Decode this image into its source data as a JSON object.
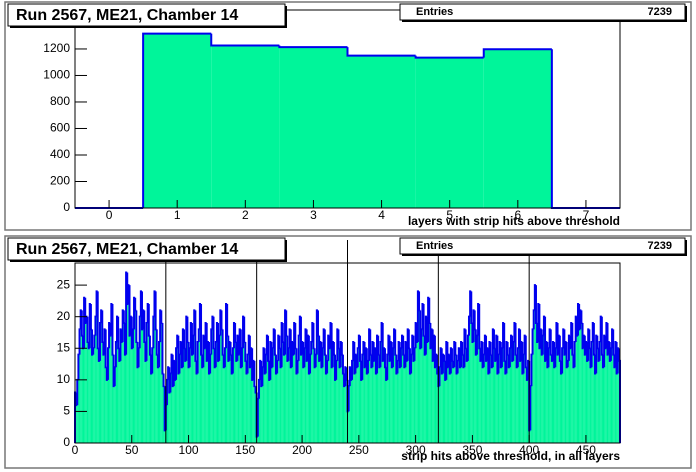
{
  "chart_data": [
    {
      "type": "histogram",
      "title": "Run 2567, ME21, Chamber 14",
      "stats": {
        "label": "Entries",
        "value": 7239
      },
      "xlabel": "layers with strip hits above threshold",
      "bins": [
        -0.5,
        0.5,
        1.5,
        2.5,
        3.5,
        4.5,
        5.5,
        6.5,
        7.5
      ],
      "values": [
        0,
        1316,
        1226,
        1214,
        1150,
        1135,
        1198,
        0
      ],
      "color": "#00f59a",
      "edgecolor": "#0000ee",
      "xlim": [
        -0.5,
        7.5
      ],
      "ylim": [
        0,
        1494
      ],
      "xticks": [
        0,
        1,
        2,
        3,
        4,
        5,
        6,
        7
      ],
      "yticks": [
        0,
        200,
        400,
        600,
        800,
        1000,
        1200
      ]
    },
    {
      "type": "histogram",
      "title": "Run 2567, ME21, Chamber 14",
      "stats": {
        "label": "Entries",
        "value": 7239
      },
      "xlabel": "strip hits above threshold, in all layers",
      "bins": [
        0,
        1,
        2,
        3,
        4,
        5,
        6,
        7,
        8,
        9,
        10,
        11,
        12,
        13,
        14,
        15,
        16,
        17,
        18,
        19,
        20,
        21,
        22,
        23,
        24,
        25,
        26,
        27,
        28,
        29,
        30,
        31,
        32,
        33,
        34,
        35,
        36,
        37,
        38,
        39,
        40,
        41,
        42,
        43,
        44,
        45,
        46,
        47,
        48,
        49,
        50,
        51,
        52,
        53,
        54,
        55,
        56,
        57,
        58,
        59,
        60,
        61,
        62,
        63,
        64,
        65,
        66,
        67,
        68,
        69,
        70,
        71,
        72,
        73,
        74,
        75,
        76,
        77,
        78,
        79,
        80,
        81,
        82,
        83,
        84,
        85,
        86,
        87,
        88,
        89,
        90,
        91,
        92,
        93,
        94,
        95,
        96,
        97,
        98,
        99,
        100,
        101,
        102,
        103,
        104,
        105,
        106,
        107,
        108,
        109,
        110,
        111,
        112,
        113,
        114,
        115,
        116,
        117,
        118,
        119,
        120,
        121,
        122,
        123,
        124,
        125,
        126,
        127,
        128,
        129,
        130,
        131,
        132,
        133,
        134,
        135,
        136,
        137,
        138,
        139,
        140,
        141,
        142,
        143,
        144,
        145,
        146,
        147,
        148,
        149,
        150,
        151,
        152,
        153,
        154,
        155,
        156,
        157,
        158,
        159,
        160,
        161,
        162,
        163,
        164,
        165,
        166,
        167,
        168,
        169,
        170,
        171,
        172,
        173,
        174,
        175,
        176,
        177,
        178,
        179,
        180,
        181,
        182,
        183,
        184,
        185,
        186,
        187,
        188,
        189,
        190,
        191,
        192,
        193,
        194,
        195,
        196,
        197,
        198,
        199,
        200,
        201,
        202,
        203,
        204,
        205,
        206,
        207,
        208,
        209,
        210,
        211,
        212,
        213,
        214,
        215,
        216,
        217,
        218,
        219,
        220,
        221,
        222,
        223,
        224,
        225,
        226,
        227,
        228,
        229,
        230,
        231,
        232,
        233,
        234,
        235,
        236,
        237,
        238,
        239,
        240,
        241,
        242,
        243,
        244,
        245,
        246,
        247,
        248,
        249,
        250,
        251,
        252,
        253,
        254,
        255,
        256,
        257,
        258,
        259,
        260,
        261,
        262,
        263,
        264,
        265,
        266,
        267,
        268,
        269,
        270,
        271,
        272,
        273,
        274,
        275,
        276,
        277,
        278,
        279,
        280,
        281,
        282,
        283,
        284,
        285,
        286,
        287,
        288,
        289,
        290,
        291,
        292,
        293,
        294,
        295,
        296,
        297,
        298,
        299,
        300,
        301,
        302,
        303,
        304,
        305,
        306,
        307,
        308,
        309,
        310,
        311,
        312,
        313,
        314,
        315,
        316,
        317,
        318,
        319,
        320,
        321,
        322,
        323,
        324,
        325,
        326,
        327,
        328,
        329,
        330,
        331,
        332,
        333,
        334,
        335,
        336,
        337,
        338,
        339,
        340,
        341,
        342,
        343,
        344,
        345,
        346,
        347,
        348,
        349,
        350,
        351,
        352,
        353,
        354,
        355,
        356,
        357,
        358,
        359,
        360,
        361,
        362,
        363,
        364,
        365,
        366,
        367,
        368,
        369,
        370,
        371,
        372,
        373,
        374,
        375,
        376,
        377,
        378,
        379,
        380,
        381,
        382,
        383,
        384,
        385,
        386,
        387,
        388,
        389,
        390,
        391,
        392,
        393,
        394,
        395,
        396,
        397,
        398,
        399,
        400,
        401,
        402,
        403,
        404,
        405,
        406,
        407,
        408,
        409,
        410,
        411,
        412,
        413,
        414,
        415,
        416,
        417,
        418,
        419,
        420,
        421,
        422,
        423,
        424,
        425,
        426,
        427,
        428,
        429,
        430,
        431,
        432,
        433,
        434,
        435,
        436,
        437,
        438,
        439,
        440,
        441,
        442,
        443,
        444,
        445,
        446,
        447,
        448,
        449,
        450,
        451,
        452,
        453,
        454,
        455,
        456,
        457,
        458,
        459,
        460,
        461,
        462,
        463,
        464,
        465,
        466,
        467,
        468,
        469,
        470,
        471,
        472,
        473,
        474,
        475,
        476,
        477,
        478,
        479,
        480
      ],
      "values": [
        8,
        6,
        10,
        14,
        18,
        21,
        17,
        15,
        23,
        19,
        20,
        16,
        15,
        22,
        18,
        14,
        15,
        17,
        20,
        24,
        15,
        13,
        19,
        21,
        16,
        14,
        18,
        12,
        10,
        15,
        19,
        17,
        22,
        14,
        9,
        12,
        16,
        20,
        15,
        13,
        18,
        16,
        21,
        19,
        14,
        27,
        22,
        25,
        17,
        20,
        15,
        18,
        23,
        21,
        16,
        12,
        15,
        20,
        24,
        18,
        21,
        16,
        13,
        19,
        22,
        17,
        14,
        11,
        15,
        20,
        24,
        18,
        14,
        12,
        16,
        21,
        19,
        11,
        9,
        2,
        6,
        10,
        12,
        8,
        11,
        14,
        9,
        13,
        10,
        15,
        17,
        11,
        14,
        16,
        12,
        18,
        15,
        13,
        20,
        16,
        12,
        15,
        19,
        14,
        17,
        21,
        13,
        11,
        16,
        18,
        22,
        14,
        12,
        17,
        15,
        19,
        13,
        16,
        11,
        14,
        18,
        20,
        15,
        12,
        16,
        19,
        13,
        17,
        21,
        18,
        14,
        12,
        15,
        22,
        17,
        13,
        16,
        14,
        11,
        15,
        19,
        16,
        13,
        17,
        14,
        18,
        12,
        15,
        20,
        16,
        13,
        11,
        14,
        17,
        12,
        15,
        10,
        13,
        9,
        8,
        1,
        7,
        10,
        13,
        9,
        12,
        15,
        11,
        14,
        17,
        13,
        10,
        16,
        12,
        15,
        18,
        14,
        11,
        13,
        17,
        15,
        12,
        19,
        16,
        14,
        21,
        17,
        13,
        15,
        18,
        12,
        16,
        14,
        19,
        15,
        11,
        13,
        17,
        20,
        14,
        16,
        12,
        15,
        18,
        13,
        17,
        11,
        14,
        16,
        19,
        15,
        12,
        14,
        21,
        17,
        13,
        16,
        12,
        15,
        18,
        14,
        11,
        13,
        17,
        15,
        19,
        12,
        16,
        14,
        10,
        13,
        18,
        15,
        12,
        16,
        14,
        11,
        9,
        12,
        10,
        5,
        9,
        12,
        10,
        13,
        16,
        11,
        14,
        12,
        15,
        17,
        13,
        10,
        14,
        16,
        12,
        15,
        11,
        13,
        18,
        14,
        12,
        16,
        13,
        15,
        11,
        17,
        14,
        12,
        16,
        19,
        13,
        15,
        12,
        10,
        14,
        17,
        13,
        16,
        12,
        15,
        18,
        14,
        11,
        13,
        16,
        12,
        15,
        17,
        14,
        12,
        16,
        13,
        18,
        15,
        11,
        14,
        17,
        13,
        15,
        19,
        16,
        24,
        21,
        15,
        18,
        22,
        17,
        14,
        20,
        16,
        23,
        19,
        15,
        18,
        13,
        17,
        12,
        14,
        11,
        9,
        12,
        15,
        11,
        14,
        13,
        10,
        16,
        12,
        14,
        11,
        15,
        13,
        12,
        16,
        14,
        11,
        13,
        15,
        12,
        16,
        14,
        12,
        18,
        15,
        13,
        17,
        20,
        24,
        19,
        16,
        21,
        18,
        14,
        17,
        22,
        15,
        13,
        16,
        12,
        14,
        17,
        13,
        15,
        11,
        16,
        14,
        12,
        18,
        15,
        13,
        17,
        11,
        14,
        16,
        12,
        15,
        19,
        13,
        11,
        16,
        14,
        12,
        15,
        17,
        13,
        16,
        19,
        14,
        12,
        15,
        18,
        13,
        16,
        11,
        14,
        17,
        12,
        10,
        13,
        2,
        9,
        14,
        18,
        21,
        25,
        19,
        16,
        22,
        15,
        18,
        14,
        17,
        20,
        13,
        16,
        12,
        15,
        18,
        14,
        13,
        16,
        12,
        15,
        19,
        14,
        17,
        13,
        11,
        15,
        18,
        14,
        16,
        12,
        13,
        17,
        15,
        19,
        14,
        12,
        16,
        20,
        17,
        22,
        18,
        21,
        19,
        15,
        17,
        14,
        16,
        13,
        18,
        15,
        12,
        16,
        19,
        14,
        11,
        17,
        15,
        13,
        16,
        20,
        14,
        12,
        17,
        15,
        19,
        14,
        16,
        13,
        15,
        18,
        14,
        12,
        16,
        11,
        15,
        13
      ],
      "color": "#00f59a",
      "edgecolor": "#0000ee",
      "vlines": [
        80,
        160,
        240,
        320,
        400
      ],
      "xlim": [
        0,
        480
      ],
      "ylim": [
        0,
        28.5
      ],
      "xticks": [
        0,
        50,
        100,
        150,
        200,
        250,
        300,
        350,
        400,
        450
      ],
      "yticks": [
        0,
        5,
        10,
        15,
        20,
        25
      ]
    }
  ]
}
